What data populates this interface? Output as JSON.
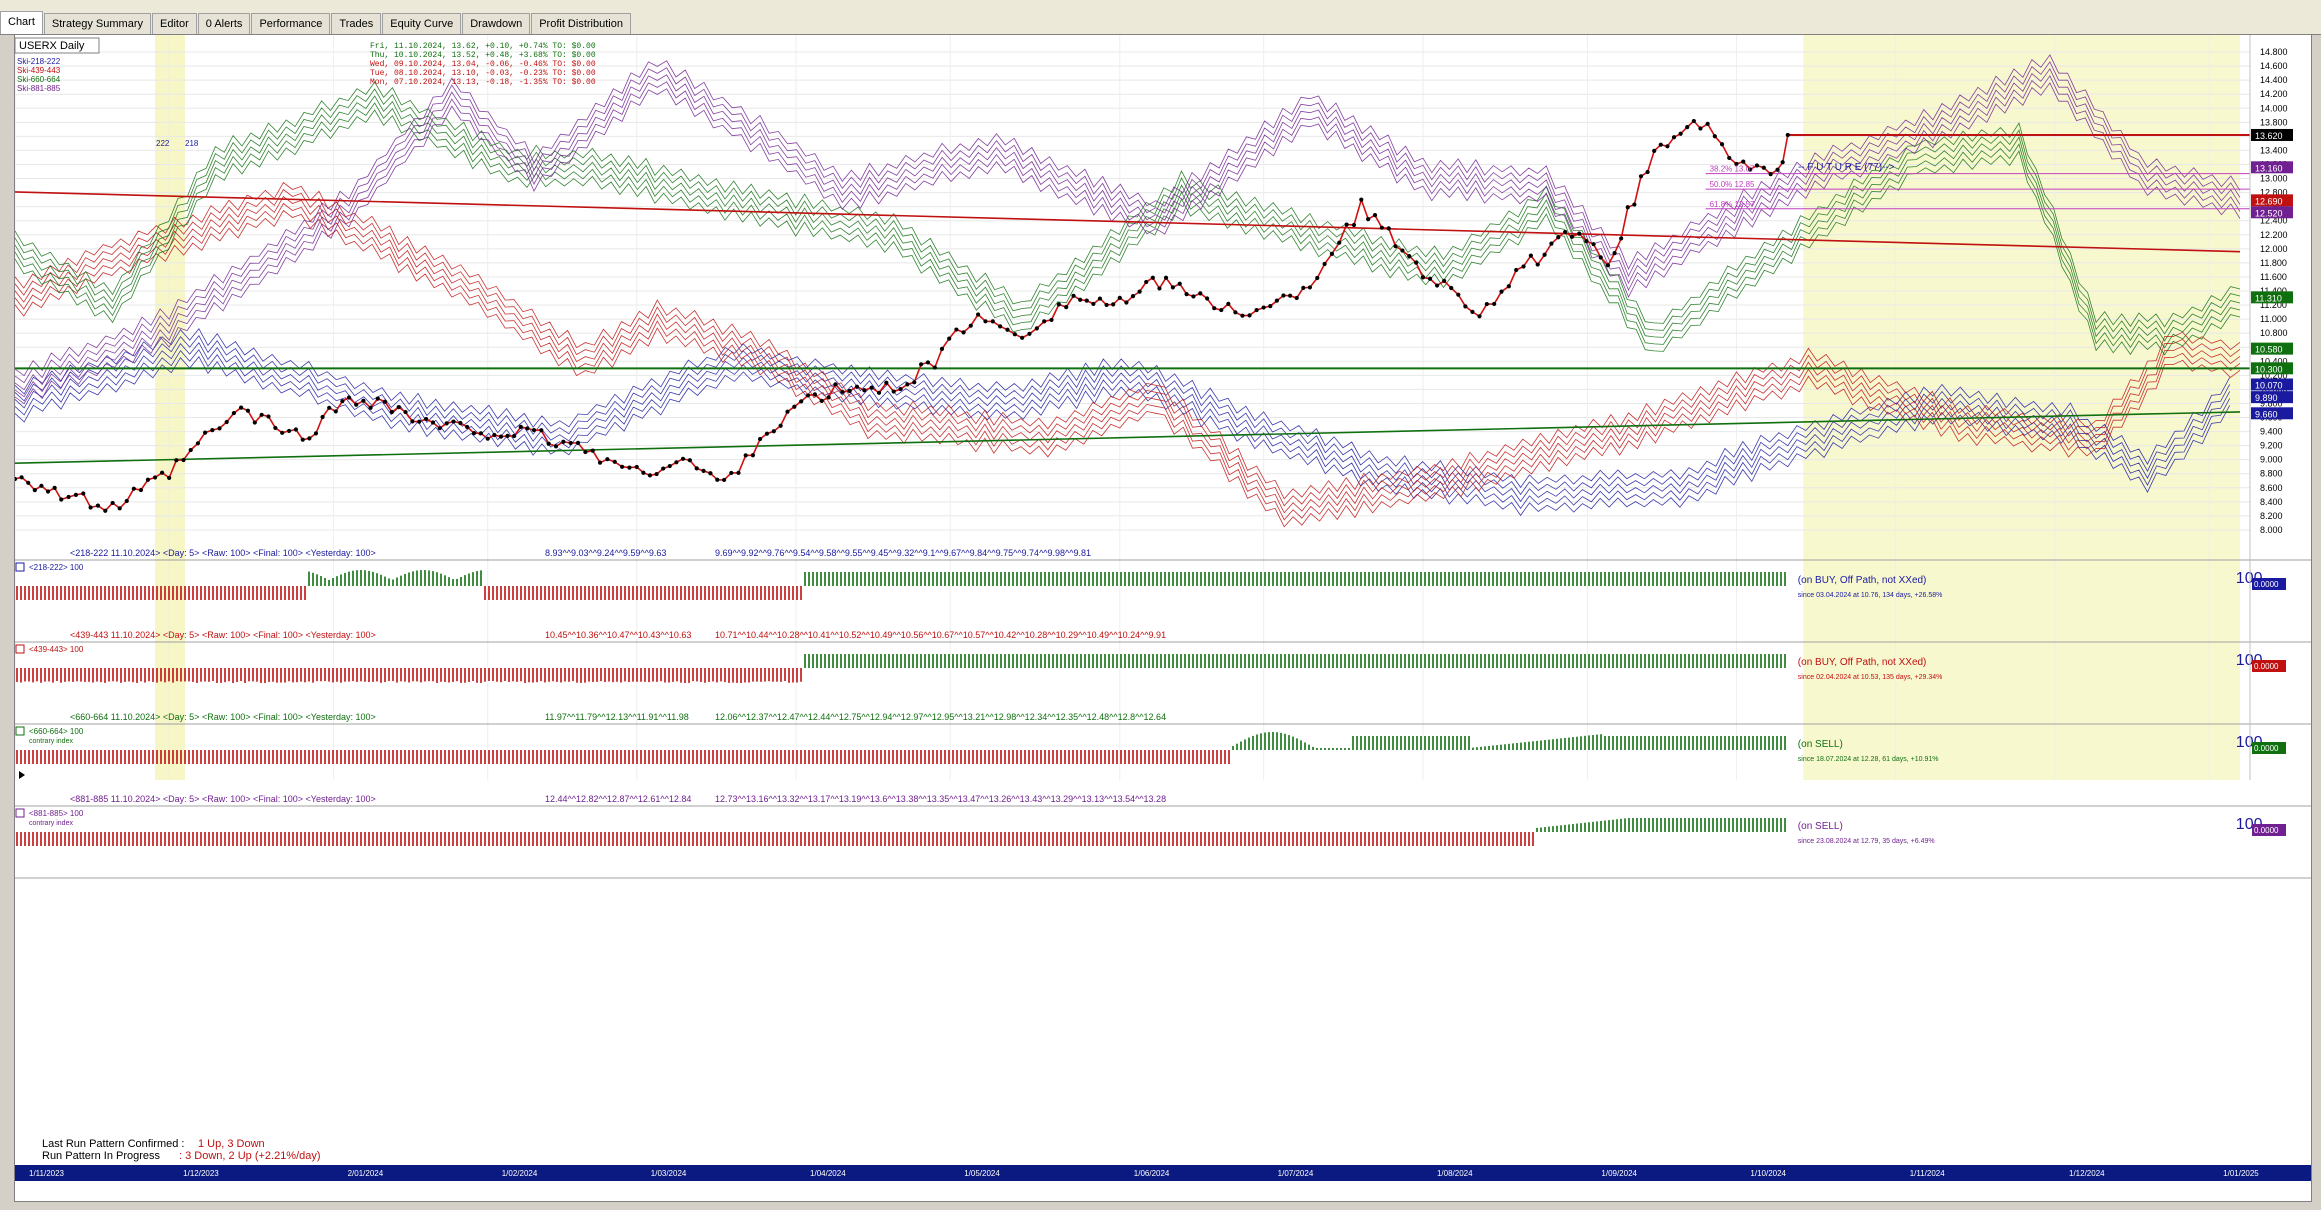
{
  "tabs": [
    "Chart",
    "Strategy Summary",
    "Editor",
    "0 Alerts",
    "Performance",
    "Trades",
    "Equity Curve",
    "Drawdown",
    "Profit Distribution"
  ],
  "active_tab": "Chart",
  "symbol_label": "USERX Daily",
  "legend_series": [
    {
      "name": "Ski-218-222",
      "color": "#1a1aa0"
    },
    {
      "name": "Ski-439-443",
      "color": "#c01010"
    },
    {
      "name": "Ski-660-664",
      "color": "#107010"
    },
    {
      "name": "Ski-881-885",
      "color": "#702090"
    }
  ],
  "price_rows": [
    "Fri, 11.10.2024, 13.62, +0.10, +0.74%   TO: $0.00",
    "Thu, 10.10.2024, 13.52, +0.48, +3.68%   TO: $0.00",
    "Wed, 09.10.2024, 13.04, -0.06, -0.46%   TO: $0.00",
    "Tue, 08.10.2024, 13.10, -0.03, -0.23%   TO: $0.00",
    "Mon, 07.10.2024, 13.13, -0.18, -1.35%   TO: $0.00"
  ],
  "price_row_colors": [
    "#107010",
    "#107010",
    "#c01010",
    "#c01010",
    "#c01010"
  ],
  "small_labels": {
    "a": "222",
    "b": "218"
  },
  "future_label": "-- F U T U R E (77)-->",
  "fib_labels": [
    "38.2% 13.07",
    "50.0% 12.85",
    "61.8% 12.57"
  ],
  "y_ticks": [
    "14.800",
    "14.600",
    "14.400",
    "14.200",
    "14.000",
    "13.800",
    "13.600",
    "13.400",
    "13.200",
    "13.000",
    "12.800",
    "12.600",
    "12.400",
    "12.200",
    "12.000",
    "11.800",
    "11.600",
    "11.400",
    "11.200",
    "11.000",
    "10.800",
    "10.600",
    "10.400",
    "10.200",
    "10.000",
    "9.800",
    "9.600",
    "9.400",
    "9.200",
    "9.000",
    "8.800",
    "8.600",
    "8.400",
    "8.200",
    "8.000"
  ],
  "axis_badges": [
    {
      "text": "13.620",
      "color": "#000000",
      "value": 13.62
    },
    {
      "text": "13.160",
      "color": "#702090",
      "value": 13.16
    },
    {
      "text": "12.690",
      "color": "#c01010",
      "value": 12.69
    },
    {
      "text": "12.520",
      "color": "#702090",
      "value": 12.52
    },
    {
      "text": "11.310",
      "color": "#107010",
      "value": 11.31
    },
    {
      "text": "10.580",
      "color": "#107010",
      "value": 10.58
    },
    {
      "text": "10.300",
      "color": "#107010",
      "value": 10.3
    },
    {
      "text": "10.070",
      "color": "#1a1aa0",
      "value": 10.07
    },
    {
      "text": "9.890",
      "color": "#1a1aa0",
      "value": 9.89
    },
    {
      "text": "9.660",
      "color": "#1a1aa0",
      "value": 9.66
    }
  ],
  "x_labels": [
    "1/11/2023",
    "1/12/2023",
    "2/01/2024",
    "1/02/2024",
    "1/03/2024",
    "1/04/2024",
    "1/05/2024",
    "1/06/2024",
    "1/07/2024",
    "1/08/2024",
    "1/09/2024",
    "1/10/2024",
    "1/11/2024",
    "1/12/2024",
    "1/01/2025"
  ],
  "indicator_panels": [
    {
      "header": "<218-222  11.10.2024>  <Day: 5>  <Raw: 100>  <Final: 100>  <Yesterday: 100>",
      "values1": "8.93^^9.03^^9.24^^9.59^^9.63",
      "values2": "9.69^^9.92^^9.76^^9.54^^9.58^^9.55^^9.45^^9.32^^9.1^^9.67^^9.84^^9.75^^9.74^^9.98^^9.81",
      "sub": "<218-222>  100",
      "sub2": "",
      "status": "(on BUY, Off Path, not XXed)",
      "since": "since 03.04.2024 at 10.76, 134 days, +26.58%",
      "score": "100",
      "badge": "0.0000",
      "color": "#1a1aa0",
      "badge_bg": "#1a1aa0"
    },
    {
      "header": "<439-443  11.10.2024>  <Day: 5>  <Raw: 100>  <Final: 100>  <Yesterday: 100>",
      "values1": "10.45^^10.36^^10.47^^10.43^^10.63",
      "values2": "10.71^^10.44^^10.28^^10.41^^10.52^^10.49^^10.56^^10.67^^10.57^^10.42^^10.28^^10.29^^10.49^^10.24^^9.91",
      "sub": "<439-443>  100",
      "sub2": "",
      "status": "(on BUY, Off Path, not XXed)",
      "since": "since 02.04.2024 at 10.53, 135 days, +29.34%",
      "score": "100",
      "badge": "0.0000",
      "color": "#c01010",
      "badge_bg": "#c01010"
    },
    {
      "header": "<660-664  11.10.2024>  <Day: 5>  <Raw: 100>  <Final: 100>  <Yesterday: 100>",
      "values1": "11.97^^11.79^^12.13^^11.91^^11.98",
      "values2": "12.06^^12.37^^12.47^^12.44^^12.75^^12.94^^12.97^^12.95^^13.21^^12.98^^12.34^^12.35^^12.48^^12.8^^12.64",
      "sub": "<660-664>  100",
      "sub2": "contrary index",
      "status": "(on SELL)",
      "since": "since 18.07.2024 at 12.28, 61 days, +10.91%",
      "score": "100",
      "badge": "0.0000",
      "color": "#107010",
      "badge_bg": "#107010"
    },
    {
      "header": "<881-885  11.10.2024>  <Day: 5>  <Raw: 100>  <Final: 100>  <Yesterday: 100>",
      "values1": "12.44^^12.82^^12.87^^12.61^^12.84",
      "values2": "12.73^^13.16^^13.32^^13.17^^13.19^^13.6^^13.38^^13.35^^13.47^^13.26^^13.43^^13.29^^13.13^^13.54^^13.28",
      "sub": "<881-885>  100",
      "sub2": "contrary index",
      "status": "(on SELL)",
      "since": "since 23.08.2024 at 12.79, 35 days, +6.49%",
      "score": "100",
      "badge": "0.0000",
      "color": "#702090",
      "badge_bg": "#702090"
    }
  ],
  "bottom_text": {
    "confirmed_label": "Last Run Pattern Confirmed :",
    "confirmed_value": "1 Up, 3 Down",
    "progress_label": "Run Pattern In Progress",
    "progress_value": ": 3 Down, 2 Up  (+2.21%/day)"
  },
  "chart_data": {
    "type": "line",
    "title": "USERX Daily",
    "ylim": [
      7.9,
      14.9
    ],
    "x_range": [
      "1/11/2023",
      "1/02/2025"
    ],
    "price_series_anchors": [
      {
        "date": "2023-11-01",
        "close": 8.8
      },
      {
        "date": "2023-11-10",
        "close": 8.5
      },
      {
        "date": "2023-11-20",
        "close": 8.3
      },
      {
        "date": "2023-12-01",
        "close": 8.8
      },
      {
        "date": "2023-12-08",
        "close": 9.3
      },
      {
        "date": "2023-12-15",
        "close": 9.7
      },
      {
        "date": "2023-12-27",
        "close": 9.3
      },
      {
        "date": "2024-01-05",
        "close": 9.9
      },
      {
        "date": "2024-01-12",
        "close": 9.8
      },
      {
        "date": "2024-01-20",
        "close": 9.5
      },
      {
        "date": "2024-02-01",
        "close": 9.4
      },
      {
        "date": "2024-02-10",
        "close": 9.35
      },
      {
        "date": "2024-02-20",
        "close": 9.15
      },
      {
        "date": "2024-03-01",
        "close": 8.8
      },
      {
        "date": "2024-03-10",
        "close": 9.0
      },
      {
        "date": "2024-03-18",
        "close": 8.65
      },
      {
        "date": "2024-03-25",
        "close": 9.3
      },
      {
        "date": "2024-04-02",
        "close": 9.8
      },
      {
        "date": "2024-04-10",
        "close": 10.0
      },
      {
        "date": "2024-04-20",
        "close": 10.0
      },
      {
        "date": "2024-04-28",
        "close": 10.4
      },
      {
        "date": "2024-05-05",
        "close": 11.0
      },
      {
        "date": "2024-05-15",
        "close": 10.8
      },
      {
        "date": "2024-05-25",
        "close": 11.3
      },
      {
        "date": "2024-06-03",
        "close": 11.2
      },
      {
        "date": "2024-06-12",
        "close": 11.6
      },
      {
        "date": "2024-06-20",
        "close": 11.2
      },
      {
        "date": "2024-07-01",
        "close": 11.1
      },
      {
        "date": "2024-07-10",
        "close": 11.5
      },
      {
        "date": "2024-07-20",
        "close": 12.6
      },
      {
        "date": "2024-08-01",
        "close": 11.7
      },
      {
        "date": "2024-08-12",
        "close": 11.1
      },
      {
        "date": "2024-08-22",
        "close": 11.8
      },
      {
        "date": "2024-08-30",
        "close": 12.2
      },
      {
        "date": "2024-09-06",
        "close": 11.8
      },
      {
        "date": "2024-09-15",
        "close": 13.4
      },
      {
        "date": "2024-09-24",
        "close": 13.8
      },
      {
        "date": "2024-10-01",
        "close": 13.2
      },
      {
        "date": "2024-10-09",
        "close": 13.04
      },
      {
        "date": "2024-10-11",
        "close": 13.62
      }
    ],
    "horizontal_lines": [
      {
        "value": 13.62,
        "color": "#c01010"
      },
      {
        "value": 13.07,
        "color": "#c040c0",
        "label": "38.2% 13.07"
      },
      {
        "value": 12.85,
        "color": "#c040c0",
        "label": "50.0% 12.85"
      },
      {
        "value": 12.57,
        "color": "#c040c0",
        "label": "61.8% 12.57"
      },
      {
        "value": 10.3,
        "color": "#107010"
      }
    ],
    "trendlines": [
      {
        "color": "#c01010",
        "from": {
          "date": "2023-11-01",
          "value": 12.81
        },
        "to": {
          "date": "2025-01-07",
          "value": 11.96
        }
      },
      {
        "color": "#107010",
        "from": {
          "date": "2023-11-01",
          "value": 8.95
        },
        "to": {
          "date": "2025-01-07",
          "value": 9.68
        }
      }
    ],
    "future_bars": 77,
    "grid": true,
    "legend": "top-left"
  }
}
